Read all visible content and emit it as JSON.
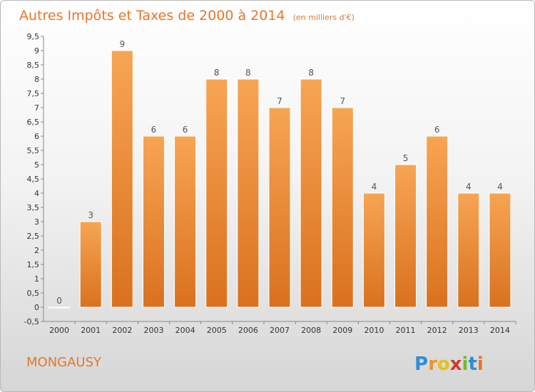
{
  "chart_data": {
    "type": "bar",
    "title": "Autres Impôts et Taxes de 2000 à 2014",
    "subtitle": "(en milliers d'€)",
    "categories": [
      "2000",
      "2001",
      "2002",
      "2003",
      "2004",
      "2005",
      "2006",
      "2007",
      "2008",
      "2009",
      "2010",
      "2011",
      "2012",
      "2013",
      "2014"
    ],
    "values": [
      0,
      3,
      9,
      6,
      6,
      8,
      8,
      7,
      8,
      7,
      4,
      5,
      6,
      4,
      4
    ],
    "value_labels": [
      "0",
      "3",
      "9",
      "6",
      "6",
      "8",
      "8",
      "7",
      "8",
      "7",
      "4",
      "5",
      "6",
      "4",
      "4"
    ],
    "y_ticks": [
      "-0,5",
      "0",
      "0,5",
      "1",
      "1,5",
      "2",
      "2,5",
      "3",
      "3,5",
      "4",
      "4,5",
      "5",
      "5,5",
      "6",
      "6,5",
      "7",
      "7,5",
      "8",
      "8,5",
      "9",
      "9,5"
    ],
    "y_tick_values": [
      -0.5,
      0,
      0.5,
      1,
      1.5,
      2,
      2.5,
      3,
      3.5,
      4,
      4.5,
      5,
      5.5,
      6,
      6.5,
      7,
      7.5,
      8,
      8.5,
      9,
      9.5
    ],
    "ylim": [
      -0.5,
      9.5
    ],
    "grid": false,
    "bar_color": "#f0902e"
  },
  "commune": "MONGAUSY",
  "logo": {
    "letters": [
      "P",
      "r",
      "o",
      "x",
      "i",
      "t",
      "i"
    ],
    "colors": [
      "#2e8ed8",
      "#f0902e",
      "#e8c018",
      "#d23a2a",
      "#78b828",
      "#2e8ed8",
      "#e8752a"
    ]
  }
}
